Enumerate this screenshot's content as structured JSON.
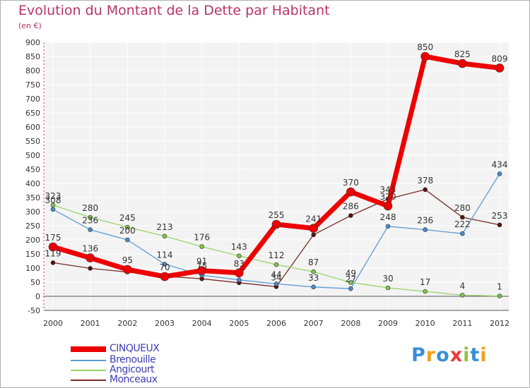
{
  "title": "Evolution du Montant de la Dette par Habitant",
  "subtitle": "(en €)",
  "logo": {
    "text": "Proxiti",
    "colors": [
      "#3a8fd4",
      "#f0a020",
      "#3a8fd4",
      "#e83a3a",
      "#8cc63f",
      "#3a8fd4",
      "#f0a020"
    ]
  },
  "chart_data": {
    "type": "line",
    "x": [
      2000,
      2001,
      2002,
      2003,
      2004,
      2005,
      2006,
      2007,
      2008,
      2009,
      2010,
      2011,
      2012
    ],
    "ylim": [
      -50,
      900
    ],
    "yticks": [
      -50,
      0,
      50,
      100,
      150,
      200,
      250,
      300,
      350,
      400,
      450,
      500,
      550,
      600,
      650,
      700,
      750,
      800,
      850,
      900
    ],
    "grid": true,
    "legend_position": "bottom-left",
    "series": [
      {
        "name": "Monceaux",
        "color": "#7a2a2a",
        "marker": "#5a1010",
        "width": 1.3,
        "values": [
          119,
          99,
          86,
          71,
          62,
          48,
          34,
          218,
          286,
          345,
          378,
          280,
          253
        ],
        "labels": [
          "119",
          "",
          "",
          "",
          "",
          "",
          "34",
          "",
          "286",
          "345",
          "378",
          "280",
          "253"
        ]
      },
      {
        "name": "Angicourt",
        "color": "#99d46a",
        "marker": "#7fc446",
        "width": 1.3,
        "values": [
          323,
          280,
          245,
          213,
          176,
          143,
          112,
          87,
          49,
          30,
          17,
          4,
          1
        ],
        "labels": [
          "323",
          "280",
          "245",
          "213",
          "176",
          "143",
          "112",
          "87",
          "49",
          "30",
          "17",
          "4",
          "1"
        ]
      },
      {
        "name": "Brenouille",
        "color": "#5b9bd5",
        "marker": "#4a8ccc",
        "width": 1.3,
        "values": [
          308,
          236,
          200,
          114,
          75,
          58,
          44,
          33,
          27,
          248,
          236,
          222,
          434
        ],
        "labels": [
          "308",
          "236",
          "200",
          "114",
          "75",
          "",
          "44",
          "33",
          "27",
          "248",
          "236",
          "222",
          "434"
        ]
      },
      {
        "name": "CINQUEUX",
        "color": "#ee0000",
        "marker": "#ee0000",
        "width": 7,
        "values": [
          175,
          136,
          95,
          70,
          91,
          83,
          255,
          241,
          370,
          320,
          850,
          825,
          809
        ],
        "labels": [
          "175",
          "136",
          "95",
          "70",
          "91",
          "83",
          "255",
          "241",
          "370",
          "320",
          "850",
          "825",
          "809"
        ]
      }
    ],
    "legend": [
      "CINQUEUX",
      "Brenouille",
      "Angicourt",
      "Monceaux"
    ]
  }
}
